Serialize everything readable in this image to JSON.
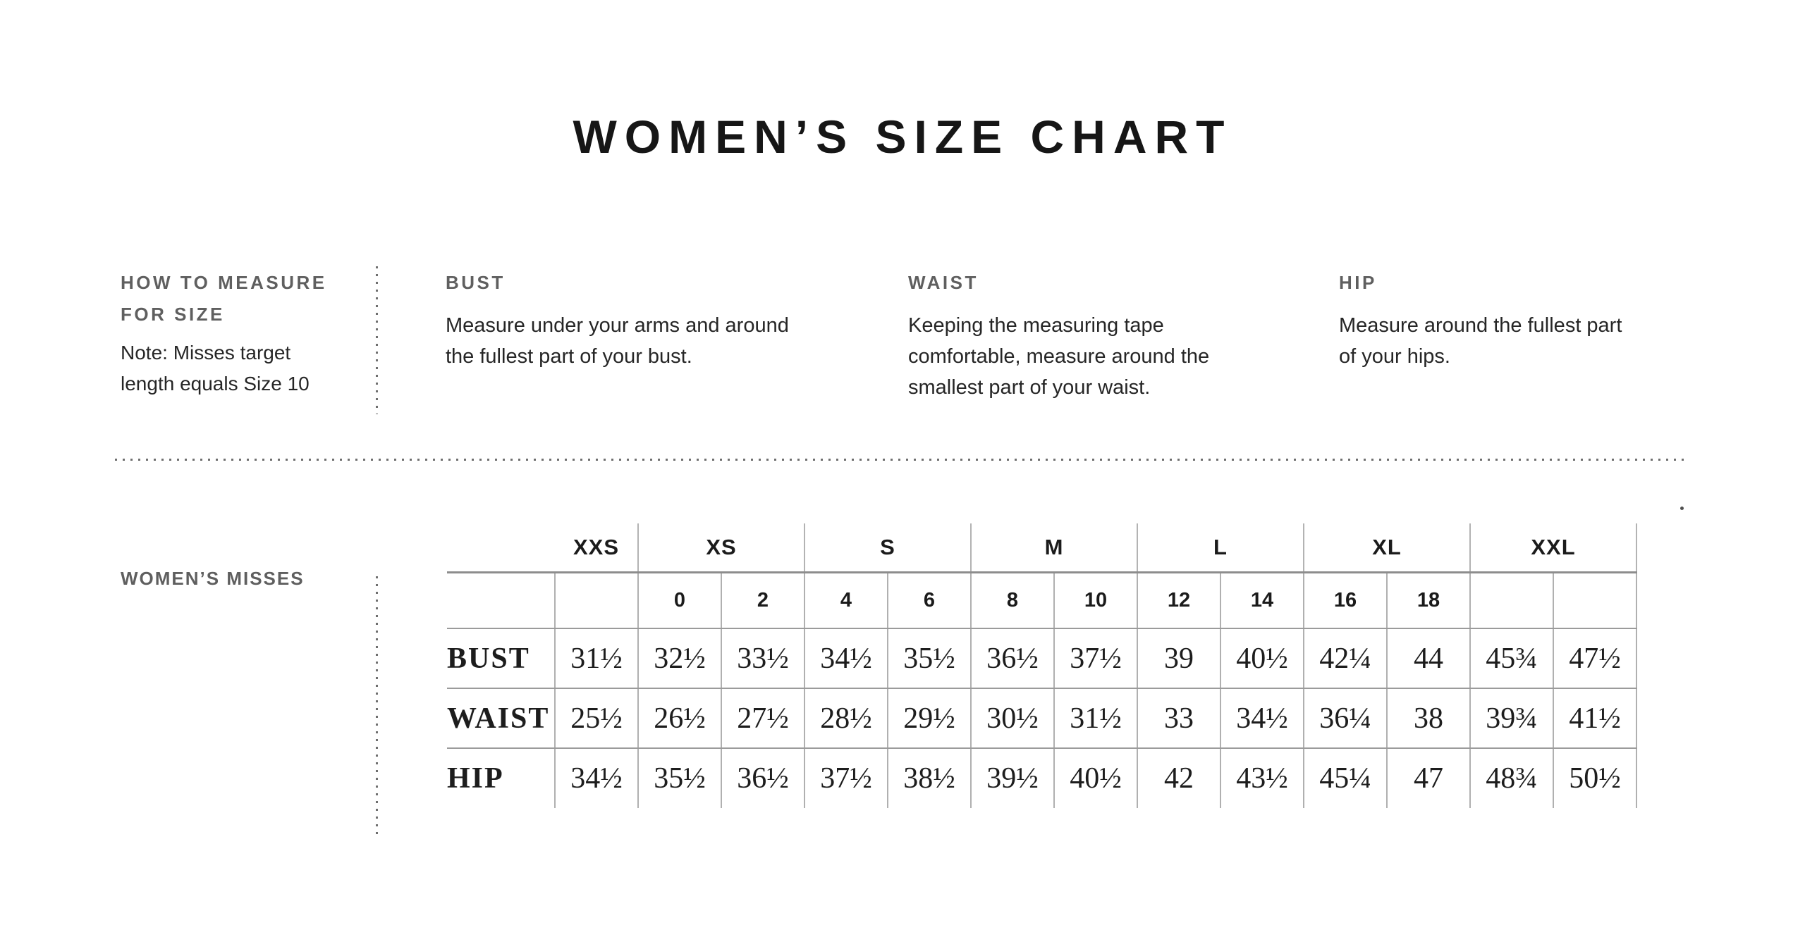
{
  "title": "WOMEN’S SIZE CHART",
  "instructions": {
    "how_to": {
      "heading": "HOW TO MEASURE FOR SIZE",
      "note": "Note: Misses target length equals Size 10"
    },
    "sections": [
      {
        "heading": "BUST",
        "text": "Measure under your arms and around the fullest part of your bust."
      },
      {
        "heading": "WAIST",
        "text": "Keeping the measuring tape comfortable, measure around the smallest part of your waist."
      },
      {
        "heading": "HIP",
        "text": "Measure around the fullest part of your hips."
      }
    ]
  },
  "chart_data": {
    "type": "table",
    "title": "WOMEN’S SIZE CHART",
    "section_label": "WOMEN’S MISSES",
    "size_groups": [
      {
        "label": "XXS",
        "columns": 1
      },
      {
        "label": "XS",
        "columns": 2
      },
      {
        "label": "S",
        "columns": 2
      },
      {
        "label": "M",
        "columns": 2
      },
      {
        "label": "L",
        "columns": 2
      },
      {
        "label": "XL",
        "columns": 2
      },
      {
        "label": "XXL",
        "columns": 2
      }
    ],
    "numeric_sizes": [
      "",
      "0",
      "2",
      "4",
      "6",
      "8",
      "10",
      "12",
      "14",
      "16",
      "18",
      "",
      ""
    ],
    "rows": [
      {
        "label": "BUST",
        "values": [
          "31½",
          "32½",
          "33½",
          "34½",
          "35½",
          "36½",
          "37½",
          "39",
          "40½",
          "42¼",
          "44",
          "45¾",
          "47½"
        ]
      },
      {
        "label": "WAIST",
        "values": [
          "25½",
          "26½",
          "27½",
          "28½",
          "29½",
          "30½",
          "31½",
          "33",
          "34½",
          "36¼",
          "38",
          "39¾",
          "41½"
        ]
      },
      {
        "label": "HIP",
        "values": [
          "34½",
          "35½",
          "36½",
          "37½",
          "38½",
          "39½",
          "40½",
          "42",
          "43½",
          "45¼",
          "47",
          "48¾",
          "50½"
        ]
      }
    ]
  },
  "colors": {
    "title_black": "#161616",
    "heading_gray": "#5f5f5f",
    "body_text": "#262626",
    "table_line_vertical": "#b0b0b0",
    "table_line_horizontal": "#9b9b9b",
    "dotted_divider": "#6f6f6f"
  }
}
